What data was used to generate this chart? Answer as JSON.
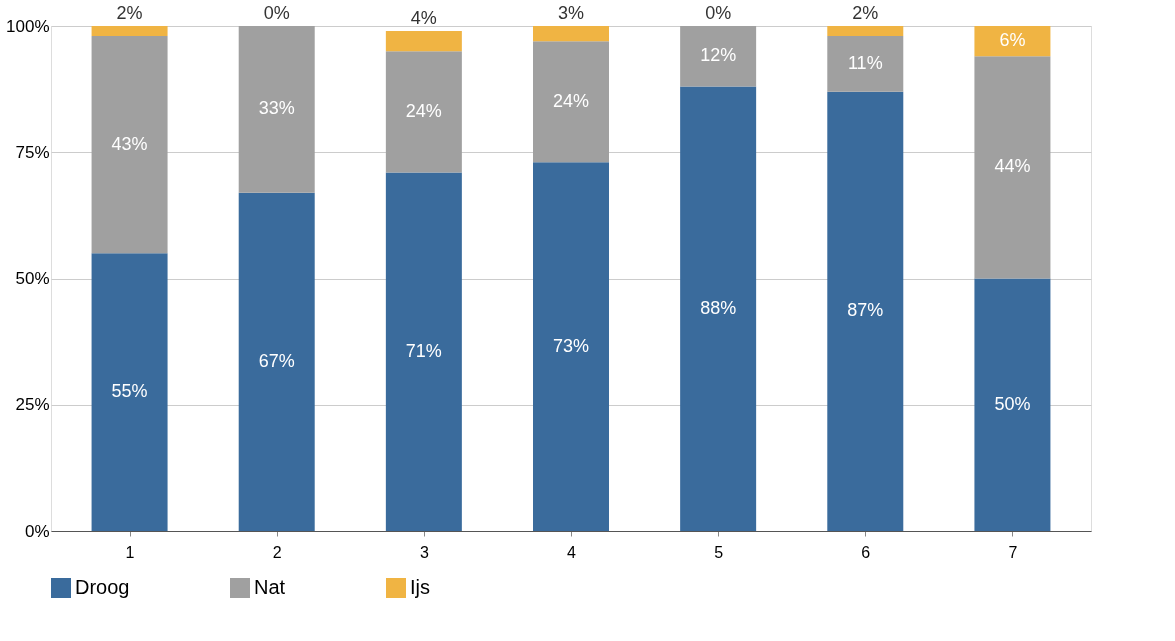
{
  "chart_data": {
    "type": "bar",
    "stacked": true,
    "categories": [
      "1",
      "2",
      "3",
      "4",
      "5",
      "6",
      "7"
    ],
    "series": [
      {
        "name": "Droog",
        "color": "#3a6b9c",
        "values": [
          55,
          67,
          71,
          73,
          88,
          87,
          50
        ],
        "value_labels": [
          "55%",
          "67%",
          "71%",
          "73%",
          "88%",
          "87%",
          "50%"
        ]
      },
      {
        "name": "Nat",
        "color": "#a0a0a0",
        "values": [
          43,
          33,
          24,
          24,
          12,
          11,
          44
        ],
        "value_labels": [
          "43%",
          "33%",
          "24%",
          "24%",
          "12%",
          "11%",
          "44%"
        ]
      },
      {
        "name": "Ijs",
        "color": "#f0b443",
        "values": [
          2,
          0,
          4,
          3,
          0,
          2,
          6
        ],
        "value_labels": [
          "2%",
          "0%",
          "4%",
          "3%",
          "0%",
          "2%",
          "6%"
        ]
      }
    ],
    "ylim": [
      0,
      100
    ],
    "yticks": [
      {
        "value": 0,
        "label": "0%"
      },
      {
        "value": 25,
        "label": "25%"
      },
      {
        "value": 50,
        "label": "50%"
      },
      {
        "value": 75,
        "label": "75%"
      },
      {
        "value": 100,
        "label": "100%"
      }
    ],
    "grid": "y",
    "legend": "bottom"
  }
}
